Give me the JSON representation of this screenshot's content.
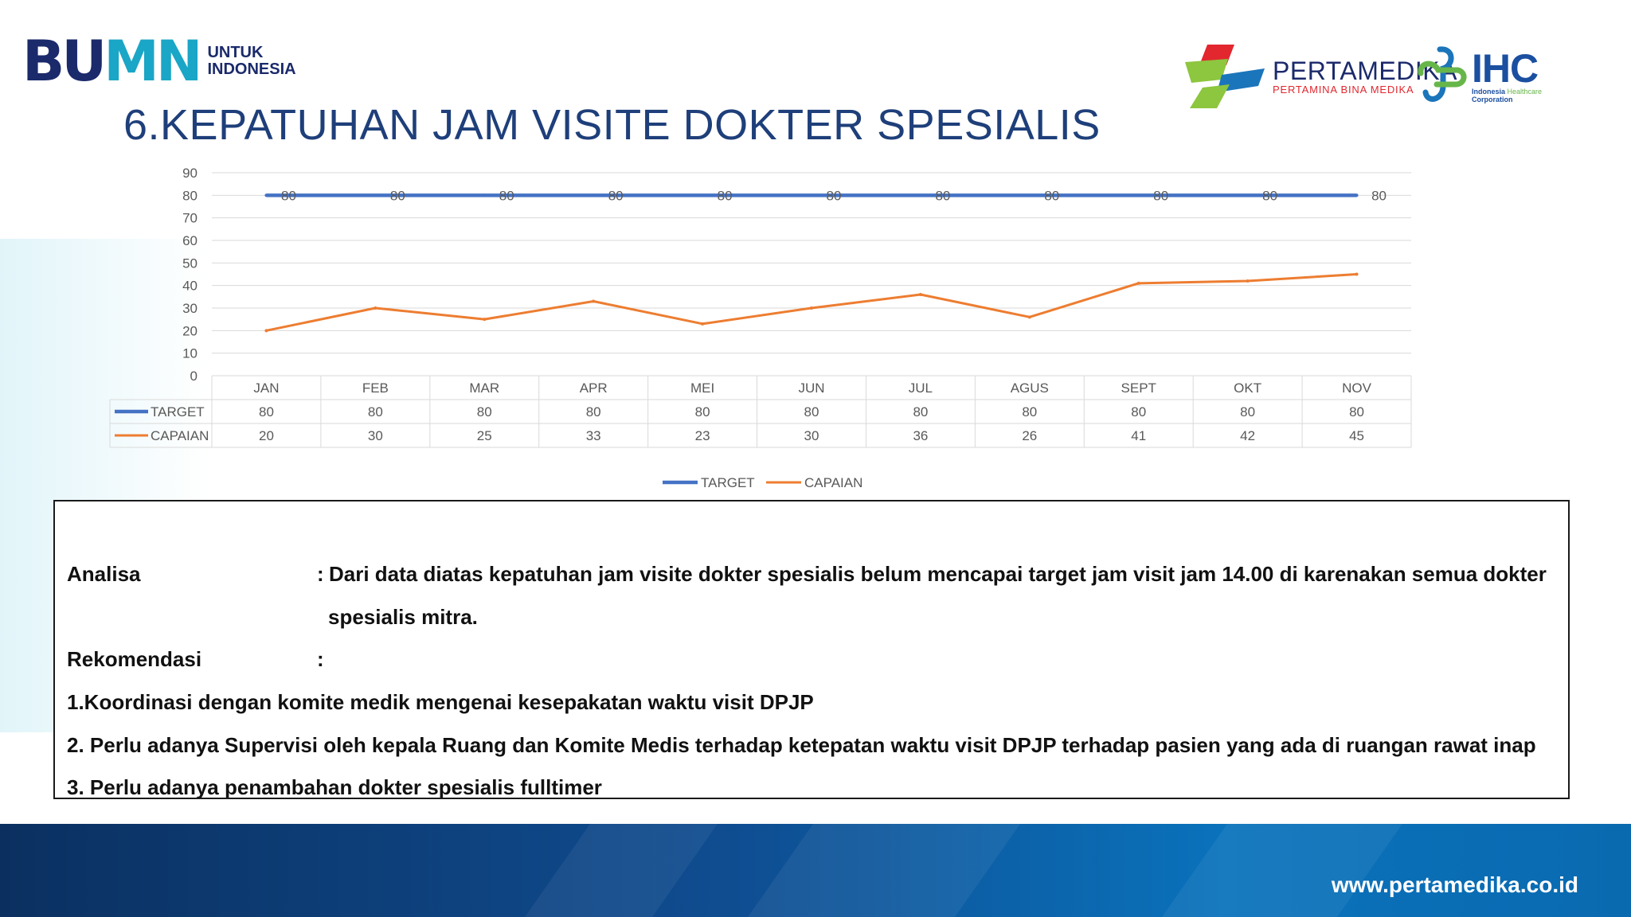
{
  "header": {
    "bumn_logo": {
      "mark": "BUMN",
      "line1": "UNTUK",
      "line2": "INDONESIA"
    },
    "pertamedika_logo": {
      "name": "PERTAMEDIKA",
      "sub": "PERTAMINA BINA MEDIKA"
    },
    "ihc_logo": {
      "name": "IHC",
      "sub1": "Indonesia",
      "sub2": "Healthcare",
      "sub3": "Corporation"
    },
    "title": "6.KEPATUHAN JAM VISITE DOKTER SPESIALIS"
  },
  "colors": {
    "target": "#4472c4",
    "capaian": "#ed7d31",
    "title": "#1e3f7a"
  },
  "chart_data": {
    "type": "line",
    "title": "",
    "xlabel": "",
    "ylabel": "",
    "categories": [
      "JAN",
      "FEB",
      "MAR",
      "APR",
      "MEI",
      "JUN",
      "JUL",
      "AGUS",
      "SEPT",
      "OKT",
      "NOV"
    ],
    "series": [
      {
        "name": "TARGET",
        "values": [
          80,
          80,
          80,
          80,
          80,
          80,
          80,
          80,
          80,
          80,
          80
        ]
      },
      {
        "name": "CAPAIAN",
        "values": [
          20,
          30,
          25,
          33,
          23,
          30,
          36,
          26,
          41,
          42,
          45
        ]
      }
    ],
    "ylim": [
      0,
      90
    ],
    "yticks": [
      0,
      10,
      20,
      30,
      40,
      50,
      60,
      70,
      80,
      90
    ],
    "grid": true,
    "data_labels": "TARGET",
    "data_table": true,
    "legend": "bottom"
  },
  "analysis": {
    "label": "Analisa",
    "colon": ":",
    "text_line1": "Dari data diatas kepatuhan jam visite dokter spesialis belum mencapai target jam visit jam 14.00 di karenakan semua dokter",
    "text_line2": "spesialis mitra.",
    "recommendation_label": "Rekomendasi",
    "recommendation_colon": ":",
    "items": [
      "1.Koordinasi dengan komite medik mengenai kesepakatan waktu visit DPJP",
      "2. Perlu adanya Supervisi oleh kepala Ruang dan Komite Medis terhadap ketepatan waktu visit DPJP terhadap pasien yang ada di ruangan rawat inap",
      "3. Perlu adanya penambahan  dokter spesialis fulltimer"
    ]
  },
  "footer": {
    "url": "www.pertamedika.co.id"
  }
}
